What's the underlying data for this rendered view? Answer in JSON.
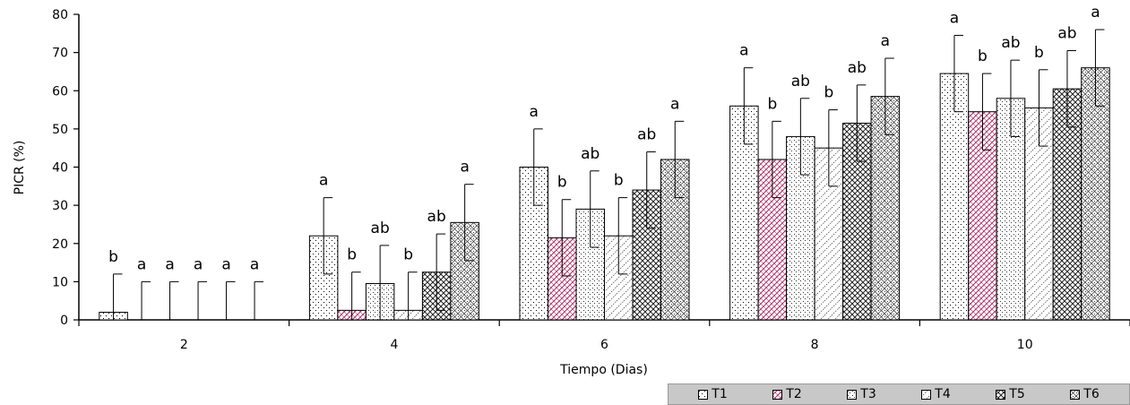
{
  "chart_data": {
    "type": "bar",
    "xlabel": "Tiempo (Dias)",
    "ylabel": "PICR (%)",
    "ylim": [
      0,
      80
    ],
    "yticks": [
      "0",
      "10",
      "20",
      "30",
      "40",
      "50",
      "60",
      "70",
      "80"
    ],
    "categories": [
      "2",
      "4",
      "6",
      "8",
      "10"
    ],
    "error_bar": 10,
    "legend_position": "bottom-right",
    "series": [
      {
        "name": "T1",
        "values": [
          2,
          22,
          40,
          56,
          64.5
        ],
        "labels": [
          "b",
          "a",
          "a",
          "a",
          "a"
        ]
      },
      {
        "name": "T2",
        "values": [
          0,
          2.5,
          21.5,
          42,
          54.5
        ],
        "labels": [
          "a",
          "b",
          "b",
          "b",
          "b"
        ]
      },
      {
        "name": "T3",
        "values": [
          0,
          9.5,
          29,
          48,
          58
        ],
        "labels": [
          "a",
          "ab",
          "ab",
          "ab",
          "ab"
        ]
      },
      {
        "name": "T4",
        "values": [
          0,
          2.5,
          22,
          45,
          55.5
        ],
        "labels": [
          "a",
          "b",
          "b",
          "b",
          "b"
        ]
      },
      {
        "name": "T5",
        "values": [
          0,
          12.5,
          34,
          51.5,
          60.5
        ],
        "labels": [
          "a",
          "ab",
          "ab",
          "ab",
          "ab"
        ]
      },
      {
        "name": "T6",
        "values": [
          0,
          25.5,
          42,
          58.5,
          66
        ],
        "labels": [
          "a",
          "a",
          "a",
          "a",
          "a"
        ]
      }
    ]
  }
}
